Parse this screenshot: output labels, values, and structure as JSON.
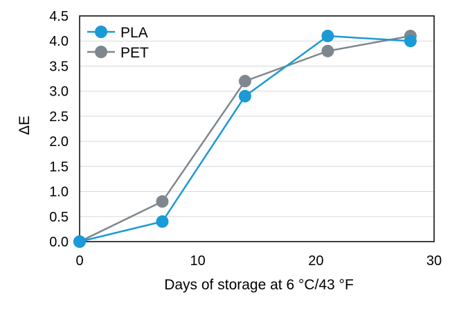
{
  "chart_data": {
    "type": "line",
    "xlabel": "Days of storage at 6 °C/43 °F",
    "ylabel": "ΔE",
    "xlim": [
      0,
      30
    ],
    "ylim": [
      0,
      4.5
    ],
    "x_ticks": [
      "0",
      "10",
      "20",
      "30"
    ],
    "y_ticks": [
      "0.0",
      "0.5",
      "1.0",
      "1.5",
      "2.0",
      "2.5",
      "3.0",
      "3.5",
      "4.0",
      "4.5"
    ],
    "grid": "horizontal",
    "legend_position": "top-left",
    "series": [
      {
        "name": "PLA",
        "color": "#1a9ad6",
        "x": [
          0,
          7,
          14,
          21,
          28
        ],
        "values": [
          0,
          0.4,
          2.9,
          4.1,
          4.0
        ]
      },
      {
        "name": "PET",
        "color": "#7f878e",
        "x": [
          0,
          7,
          14,
          21,
          28
        ],
        "values": [
          0,
          0.8,
          3.2,
          3.8,
          4.1
        ]
      }
    ]
  }
}
